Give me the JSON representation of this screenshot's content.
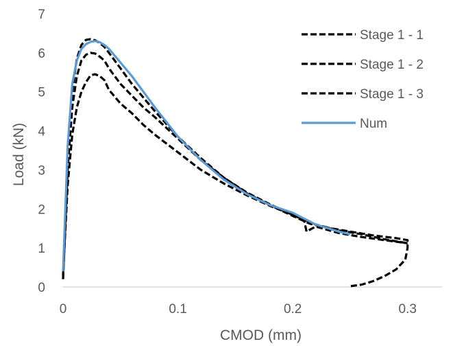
{
  "chart_data": {
    "type": "line",
    "xlabel": "CMOD (mm)",
    "ylabel": "Load (kN)",
    "xlim": [
      0,
      0.33
    ],
    "ylim": [
      0,
      7
    ],
    "x_ticks": [
      "0",
      "0.1",
      "0.2",
      "0.3"
    ],
    "y_ticks": [
      "0",
      "1",
      "2",
      "3",
      "4",
      "5",
      "6",
      "7"
    ],
    "grid": false,
    "legend_position": "top-right",
    "series": [
      {
        "name": "Stage 1 - 1",
        "style": "dashed",
        "color": "#000000",
        "x": [
          0,
          0.004,
          0.008,
          0.012,
          0.016,
          0.02,
          0.024,
          0.028,
          0.032,
          0.036,
          0.04,
          0.05,
          0.06,
          0.07,
          0.08,
          0.1,
          0.12,
          0.14,
          0.16,
          0.18,
          0.2,
          0.215,
          0.23,
          0.25,
          0.27,
          0.29,
          0.3,
          0.3,
          0.298,
          0.29,
          0.28,
          0.27,
          0.26,
          0.25
        ],
        "y": [
          0.2,
          3.4,
          5.0,
          5.85,
          6.2,
          6.33,
          6.35,
          6.32,
          6.25,
          6.15,
          6.0,
          5.6,
          5.2,
          4.85,
          4.5,
          3.85,
          3.3,
          2.8,
          2.4,
          2.1,
          1.82,
          1.62,
          1.52,
          1.42,
          1.32,
          1.25,
          1.2,
          1.0,
          0.7,
          0.45,
          0.28,
          0.15,
          0.06,
          0.02
        ]
      },
      {
        "name": "Stage 1 - 2",
        "style": "dashed",
        "color": "#000000",
        "x": [
          0,
          0.004,
          0.008,
          0.012,
          0.016,
          0.02,
          0.024,
          0.028,
          0.032,
          0.036,
          0.04,
          0.05,
          0.06,
          0.07,
          0.08,
          0.1,
          0.12,
          0.14,
          0.16,
          0.18,
          0.2,
          0.21,
          0.22,
          0.24,
          0.26,
          0.28,
          0.3
        ],
        "y": [
          0.2,
          3.0,
          4.6,
          5.4,
          5.8,
          5.95,
          6.0,
          5.98,
          5.9,
          5.8,
          5.6,
          5.2,
          4.9,
          4.6,
          4.35,
          3.8,
          3.25,
          2.8,
          2.42,
          2.12,
          1.85,
          1.72,
          1.6,
          1.45,
          1.35,
          1.22,
          1.12
        ]
      },
      {
        "name": "Stage 1 - 3",
        "style": "dashed",
        "color": "#000000",
        "x": [
          0,
          0.004,
          0.008,
          0.012,
          0.016,
          0.02,
          0.024,
          0.028,
          0.032,
          0.036,
          0.04,
          0.05,
          0.06,
          0.07,
          0.08,
          0.1,
          0.12,
          0.14,
          0.16,
          0.18,
          0.2,
          0.21,
          0.212,
          0.22,
          0.24,
          0.26,
          0.28,
          0.3
        ],
        "y": [
          0.3,
          2.6,
          3.9,
          4.6,
          5.0,
          5.25,
          5.42,
          5.45,
          5.4,
          5.3,
          5.05,
          4.7,
          4.45,
          4.15,
          3.9,
          3.45,
          3.0,
          2.65,
          2.35,
          2.08,
          1.85,
          1.7,
          1.42,
          1.55,
          1.38,
          1.28,
          1.2,
          1.12
        ]
      },
      {
        "name": "Num",
        "style": "solid",
        "color": "#5b9bd5",
        "x": [
          0,
          0.004,
          0.008,
          0.012,
          0.016,
          0.02,
          0.024,
          0.028,
          0.032,
          0.036,
          0.04,
          0.05,
          0.06,
          0.07,
          0.08,
          0.1,
          0.12,
          0.14,
          0.16,
          0.18,
          0.2,
          0.22,
          0.24,
          0.25
        ],
        "y": [
          0.4,
          3.6,
          5.2,
          5.8,
          6.1,
          6.22,
          6.28,
          6.3,
          6.27,
          6.2,
          6.1,
          5.75,
          5.4,
          5.0,
          4.6,
          3.85,
          3.25,
          2.75,
          2.38,
          2.1,
          1.9,
          1.6,
          1.42,
          1.35
        ]
      }
    ]
  }
}
